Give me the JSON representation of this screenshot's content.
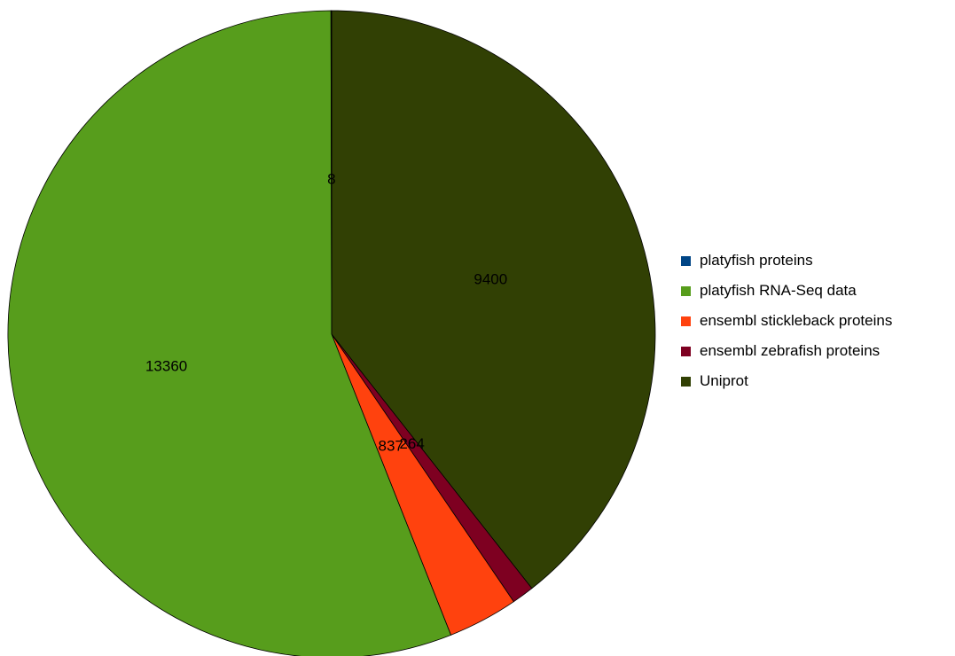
{
  "chart_data": {
    "type": "pie",
    "title": "",
    "start_angle_deg": 0,
    "direction": "clockwise",
    "legend_position": "right",
    "series": [
      {
        "name": "",
        "slices": [
          {
            "label": "Uniprot",
            "value": 9400,
            "value_label": "9400",
            "color": "#314004"
          },
          {
            "label": "ensembl zebrafish proteins",
            "value": 264,
            "value_label": "264",
            "color": "#7E0021"
          },
          {
            "label": "ensembl stickleback proteins",
            "value": 837,
            "value_label": "837",
            "color": "#FF420E"
          },
          {
            "label": "platyfish RNA-Seq data",
            "value": 13360,
            "value_label": "13360",
            "color": "#579D1C"
          },
          {
            "label": "platyfish proteins",
            "value": 8,
            "value_label": "8",
            "color": "#004586"
          }
        ]
      }
    ],
    "legend": [
      {
        "label": "platyfish proteins",
        "color": "#004586"
      },
      {
        "label": "platyfish RNA-Seq data",
        "color": "#579D1C"
      },
      {
        "label": "ensembl stickleback proteins",
        "color": "#FF420E"
      },
      {
        "label": "ensembl zebrafish proteins",
        "color": "#7E0021"
      },
      {
        "label": "Uniprot",
        "color": "#314004"
      }
    ]
  }
}
